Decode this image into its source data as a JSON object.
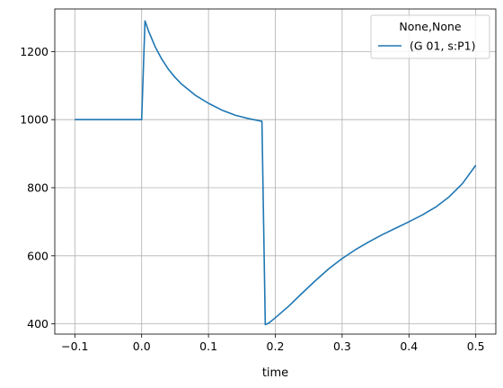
{
  "chart_data": {
    "type": "line",
    "title": "",
    "xlabel": "time",
    "ylabel": "",
    "xlim": [
      -0.13,
      0.53
    ],
    "ylim": [
      370,
      1325
    ],
    "xticks": [
      -0.1,
      0.0,
      0.1,
      0.2,
      0.3,
      0.4,
      0.5
    ],
    "xtick_labels": [
      "−0.1",
      "0.0",
      "0.1",
      "0.2",
      "0.3",
      "0.4",
      "0.5"
    ],
    "yticks": [
      400,
      600,
      800,
      1000,
      1200
    ],
    "ytick_labels": [
      "400",
      "600",
      "800",
      "1000",
      "1200"
    ],
    "grid": true,
    "legend": {
      "title": "None,None",
      "placement": "top-right"
    },
    "series": [
      {
        "name": "(G 01, s:P1)",
        "color": "#1f77b4",
        "x": [
          -0.1,
          0.0,
          0.005,
          0.01,
          0.02,
          0.03,
          0.04,
          0.05,
          0.06,
          0.08,
          0.1,
          0.12,
          0.14,
          0.16,
          0.18,
          0.185,
          0.19,
          0.2,
          0.22,
          0.24,
          0.26,
          0.28,
          0.3,
          0.32,
          0.34,
          0.36,
          0.38,
          0.4,
          0.42,
          0.44,
          0.46,
          0.48,
          0.5
        ],
        "y": [
          1000,
          1000,
          1290,
          1262,
          1215,
          1178,
          1148,
          1124,
          1104,
          1072,
          1048,
          1028,
          1013,
          1003,
          995,
          398,
          402,
          418,
          452,
          490,
          527,
          562,
          592,
          618,
          641,
          662,
          681,
          700,
          720,
          743,
          773,
          812,
          866
        ]
      }
    ]
  }
}
